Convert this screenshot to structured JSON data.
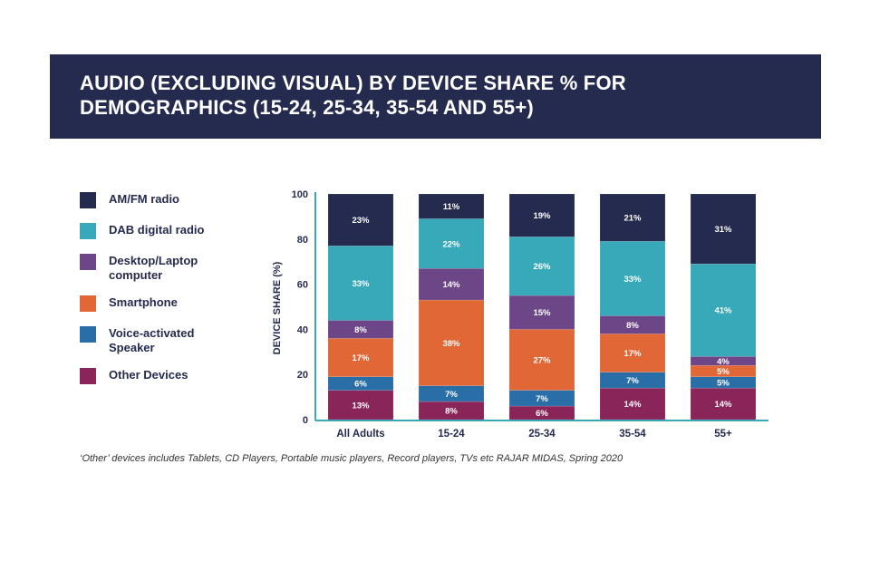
{
  "title_line1": "AUDIO (EXCLUDING VISUAL) BY DEVICE SHARE % FOR",
  "title_line2": "DEMOGRAPHICS (15-24, 25-34, 35-54 AND 55+)",
  "footnote": "‘Other’ devices includes Tablets, CD Players, Portable music players, Record players, TVs etc RAJAR MIDAS, Spring 2020",
  "colors": {
    "header": "#252b4f",
    "axis": "#37a9b9"
  },
  "chart_data": {
    "type": "bar",
    "stacked": true,
    "title": "AUDIO (EXCLUDING VISUAL) BY DEVICE SHARE % FOR DEMOGRAPHICS (15-24, 25-34, 35-54 AND 55+)",
    "xlabel": "",
    "ylabel": "DEVICE SHARE (%)",
    "ylim": [
      0,
      100
    ],
    "yticks": [
      "0",
      "20",
      "40",
      "60",
      "80",
      "100"
    ],
    "categories": [
      "All Adults",
      "15-24",
      "25-34",
      "35-54",
      "55+"
    ],
    "legend_position": "left",
    "series": [
      {
        "name": "Other Devices",
        "color": "#8a2559",
        "values": [
          13,
          8,
          6,
          14,
          14
        ]
      },
      {
        "name": "Voice-activated Speaker",
        "color": "#2a6ea8",
        "values": [
          6,
          7,
          7,
          7,
          5
        ]
      },
      {
        "name": "Smartphone",
        "color": "#e26737",
        "values": [
          17,
          38,
          27,
          17,
          5
        ]
      },
      {
        "name": "Desktop/Laptop computer",
        "color": "#6c4687",
        "values": [
          8,
          14,
          15,
          8,
          4
        ]
      },
      {
        "name": "DAB digital radio",
        "color": "#37a9b9",
        "values": [
          33,
          22,
          26,
          33,
          41
        ]
      },
      {
        "name": "AM/FM radio",
        "color": "#252b4f",
        "values": [
          23,
          11,
          19,
          21,
          31
        ]
      }
    ],
    "legend_order": [
      "AM/FM radio",
      "DAB digital radio",
      "Desktop/Laptop computer",
      "Smartphone",
      "Voice-activated Speaker",
      "Other Devices"
    ]
  }
}
